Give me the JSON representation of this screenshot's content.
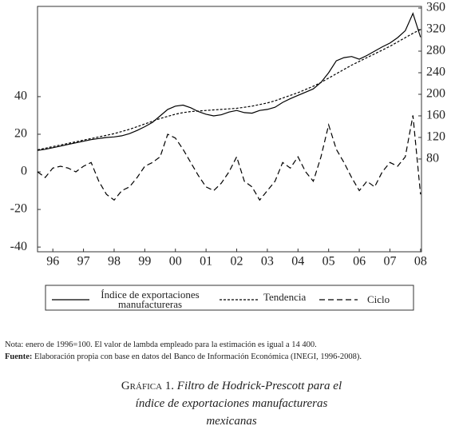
{
  "chart_data": {
    "type": "line",
    "x": [
      1996,
      1996.25,
      1996.5,
      1996.75,
      1997,
      1997.25,
      1997.5,
      1997.75,
      1998,
      1998.25,
      1998.5,
      1998.75,
      1999,
      1999.25,
      1999.5,
      1999.75,
      2000,
      2000.25,
      2000.5,
      2000.75,
      2001,
      2001.25,
      2001.5,
      2001.75,
      2002,
      2002.25,
      2002.5,
      2002.75,
      2003,
      2003.25,
      2003.5,
      2003.75,
      2004,
      2004.25,
      2004.5,
      2004.75,
      2005,
      2005.25,
      2005.5,
      2005.75,
      2006,
      2006.25,
      2006.5,
      2006.75,
      2007,
      2007.25,
      2007.5,
      2007.75,
      2008,
      2008.25,
      2008.5
    ],
    "xlim": [
      1996,
      2008.53
    ],
    "xticks": [
      {
        "value": 1996.5,
        "label": "96"
      },
      {
        "value": 1997.5,
        "label": "97"
      },
      {
        "value": 1998.5,
        "label": "98"
      },
      {
        "value": 1999.5,
        "label": "99"
      },
      {
        "value": 2000.5,
        "label": "00"
      },
      {
        "value": 2001.5,
        "label": "01"
      },
      {
        "value": 2002.5,
        "label": "02"
      },
      {
        "value": 2003.5,
        "label": "03"
      },
      {
        "value": 2004.5,
        "label": "04"
      },
      {
        "value": 2005.5,
        "label": "05"
      },
      {
        "value": 2006.5,
        "label": "06"
      },
      {
        "value": 2007.5,
        "label": "07"
      },
      {
        "value": 2008.5,
        "label": "08"
      }
    ],
    "ylim": [
      -42.5,
      88
    ],
    "yticks": [
      -40,
      -20,
      0,
      20,
      40
    ],
    "y2lim": [
      -92,
      363
    ],
    "y2ticks": [
      80,
      120,
      160,
      200,
      240,
      280,
      320,
      360
    ],
    "series": [
      {
        "name": "Índice de exportaciones manufactureras",
        "color": "#000000",
        "line_style": "solid",
        "axis": "y2",
        "values": [
          96,
          98,
          101,
          104,
          107,
          110,
          113,
          116,
          118,
          120,
          121,
          123,
          127,
          133,
          140,
          148,
          160,
          172,
          178,
          180,
          175,
          168,
          163,
          160,
          162,
          167,
          170,
          166,
          165,
          170,
          172,
          176,
          185,
          192,
          198,
          204,
          210,
          222,
          240,
          262,
          268,
          270,
          265,
          272,
          280,
          288,
          295,
          305,
          318,
          350,
          306
        ]
      },
      {
        "name": "Tendencia",
        "color": "#000000",
        "line_style": "dotted",
        "axis": "y2",
        "values": [
          97,
          100,
          103,
          106,
          109,
          112,
          115,
          118,
          121,
          124,
          127,
          131,
          135,
          140,
          145,
          150,
          155,
          159,
          163,
          166,
          168,
          169,
          170,
          171,
          172,
          173,
          174,
          176,
          178,
          181,
          184,
          188,
          193,
          198,
          203,
          209,
          215,
          222,
          230,
          238,
          246,
          254,
          261,
          268,
          275,
          282,
          289,
          297,
          305,
          313,
          320
        ]
      },
      {
        "name": "Ciclo",
        "color": "#000000",
        "line_style": "dashed",
        "values": [
          0,
          -3,
          2,
          3,
          2,
          0,
          3,
          5,
          -5,
          -12,
          -15,
          -10,
          -8,
          -3,
          3,
          5,
          8,
          20,
          18,
          12,
          5,
          -2,
          -8,
          -10,
          -6,
          0,
          8,
          -5,
          -8,
          -15,
          -10,
          -5,
          5,
          2,
          8,
          0,
          -5,
          8,
          25,
          12,
          5,
          -3,
          -10,
          -5,
          -8,
          0,
          5,
          3,
          8,
          30,
          -12
        ]
      }
    ]
  },
  "notes": [
    {
      "text": "Nota: enero de 1996=100. El valor de lambda empleado para la estimación es igual a 14 400."
    },
    {
      "label": "Fuente:",
      "text": "Elaboración propia con base en datos del Banco de Información Económica (INEGI, 1996-2008)."
    }
  ],
  "caption": {
    "label": "Gráfica 1.",
    "text": "Filtro de Hodrick-Prescott para el índice de exportaciones manufactureras mexicanas"
  }
}
